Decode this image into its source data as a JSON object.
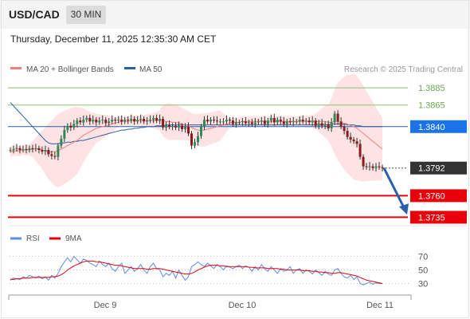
{
  "header": {
    "pair": "USD/CAD",
    "timeframe": "30 MIN",
    "datetime": "Thursday, December 11, 2025 12:35:30 AM CET"
  },
  "legend": {
    "ma20": "MA 20 + Bollinger Bands",
    "ma50": "MA 50",
    "ma20_color": "#f08080",
    "ma50_color": "#2b5fa8",
    "credit": "Research © 2025 Trading Central"
  },
  "chart_data": {
    "type": "candlestick",
    "ylim": [
      1.3728,
      1.3898
    ],
    "x_labels": [
      "Dec 9",
      "Dec 10",
      "Dec 11"
    ],
    "closes": [
      1.3813,
      1.3814,
      1.3815,
      1.3813,
      1.3814,
      1.3813,
      1.3815,
      1.3814,
      1.3815,
      1.3813,
      1.3811,
      1.3813,
      1.3808,
      1.3806,
      1.3805,
      1.3818,
      1.3826,
      1.3836,
      1.3841,
      1.3839,
      1.3843,
      1.3847,
      1.3845,
      1.3848,
      1.385,
      1.3846,
      1.3848,
      1.3845,
      1.3847,
      1.3848,
      1.3844,
      1.3846,
      1.3848,
      1.3847,
      1.3848,
      1.3846,
      1.3848,
      1.3847,
      1.3849,
      1.3846,
      1.3848,
      1.3849,
      1.3846,
      1.3847,
      1.3848,
      1.385,
      1.3847,
      1.3849,
      1.3839,
      1.3842,
      1.384,
      1.3841,
      1.3839,
      1.3841,
      1.3837,
      1.384,
      1.3832,
      1.3818,
      1.3822,
      1.3829,
      1.384,
      1.3848,
      1.3846,
      1.3848,
      1.3847,
      1.3846,
      1.3846,
      1.3846,
      1.3848,
      1.3847,
      1.3843,
      1.3845,
      1.3845,
      1.3846,
      1.3844,
      1.3845,
      1.3843,
      1.3845,
      1.3846,
      1.3847,
      1.3843,
      1.3847,
      1.385,
      1.3845,
      1.3848,
      1.3846,
      1.3843,
      1.3846,
      1.3845,
      1.3846,
      1.3846,
      1.3848,
      1.3846,
      1.3847,
      1.3845,
      1.3847,
      1.3841,
      1.3844,
      1.3841,
      1.3843,
      1.3838,
      1.3845,
      1.3855,
      1.3846,
      1.384,
      1.3835,
      1.3828,
      1.3825,
      1.3823,
      1.382,
      1.3805,
      1.3794,
      1.3793,
      1.3794,
      1.3792,
      1.3794,
      1.3793,
      1.3792
    ],
    "ma20": [
      1.3811,
      1.3812,
      1.3812,
      1.3812,
      1.3813,
      1.3813,
      1.3813,
      1.3814,
      1.3814,
      1.3814,
      1.3813,
      1.3812,
      1.3811,
      1.3811,
      1.3811,
      1.3812,
      1.3814,
      1.3816,
      1.3818,
      1.382,
      1.3822,
      1.3824,
      1.3827,
      1.383,
      1.3832,
      1.3834,
      1.3836,
      1.3838,
      1.3839,
      1.384,
      1.3841,
      1.3842,
      1.3843,
      1.3844,
      1.3845,
      1.3846,
      1.3846,
      1.3846,
      1.3847,
      1.3847,
      1.3847,
      1.3847,
      1.3847,
      1.3847,
      1.3847,
      1.3847,
      1.3847,
      1.3847,
      1.3847,
      1.3846,
      1.3846,
      1.3845,
      1.3845,
      1.3844,
      1.3843,
      1.3842,
      1.3841,
      1.3839,
      1.3837,
      1.3836,
      1.3836,
      1.3836,
      1.3837,
      1.3838,
      1.3839,
      1.384,
      1.3841,
      1.3842,
      1.3843,
      1.3844,
      1.3845,
      1.3845,
      1.3845,
      1.3846,
      1.3846,
      1.3846,
      1.3846,
      1.3846,
      1.3846,
      1.3846,
      1.3846,
      1.3846,
      1.3846,
      1.3846,
      1.3846,
      1.3846,
      1.3846,
      1.3846,
      1.3846,
      1.3846,
      1.3846,
      1.3846,
      1.3846,
      1.3846,
      1.3846,
      1.3846,
      1.3846,
      1.3846,
      1.3846,
      1.3846,
      1.3845,
      1.3845,
      1.3846,
      1.3846,
      1.3845,
      1.3844,
      1.3843,
      1.3841,
      1.384,
      1.3838,
      1.3835,
      1.3832,
      1.3829,
      1.3826,
      1.3823,
      1.382,
      1.3817,
      1.3814
    ],
    "ma50": [
      1.3868,
      1.3864,
      1.386,
      1.3856,
      1.3852,
      1.3848,
      1.3844,
      1.384,
      1.3836,
      1.3832,
      1.3828,
      1.3824,
      1.3821,
      1.382,
      1.382,
      1.382,
      1.3821,
      1.3821,
      1.3822,
      1.3822,
      1.3823,
      1.3823,
      1.3824,
      1.3824,
      1.3825,
      1.3826,
      1.3827,
      1.3828,
      1.3829,
      1.383,
      1.3831,
      1.3832,
      1.3833,
      1.3834,
      1.3835,
      1.3836,
      1.3836,
      1.3837,
      1.3837,
      1.3838,
      1.3838,
      1.3839,
      1.3839,
      1.384,
      1.384,
      1.384,
      1.3841,
      1.3841,
      1.3841,
      1.3842,
      1.3842,
      1.3842,
      1.3842,
      1.3842,
      1.3842,
      1.3842,
      1.3842,
      1.3842,
      1.3842,
      1.3842,
      1.3842,
      1.3842,
      1.3842,
      1.3842,
      1.3842,
      1.3842,
      1.3842,
      1.3842,
      1.3842,
      1.3842,
      1.3842,
      1.3842,
      1.3842,
      1.3842,
      1.3842,
      1.3842,
      1.3842,
      1.3842,
      1.3842,
      1.3842,
      1.3842,
      1.3842,
      1.3842,
      1.3842,
      1.3842,
      1.3842,
      1.3842,
      1.3842,
      1.3842,
      1.3842,
      1.3842,
      1.3842,
      1.3842,
      1.3842,
      1.3842,
      1.3842,
      1.3842,
      1.3842,
      1.3842,
      1.3842,
      1.3842,
      1.3843,
      1.3843,
      1.3843,
      1.3843,
      1.3843,
      1.3842,
      1.3842,
      1.3842,
      1.3841,
      1.3841,
      1.384,
      1.384,
      1.384,
      1.384,
      1.384,
      1.384,
      1.384
    ],
    "levels": [
      {
        "value": 1.3885,
        "label": "1.3885",
        "color": "#8dc26f",
        "kind": "resistance"
      },
      {
        "value": 1.3865,
        "label": "1.3865",
        "color": "#8dc26f",
        "kind": "resistance"
      },
      {
        "value": 1.384,
        "label": "1.3840",
        "color": "#1a73e8",
        "kind": "pivot"
      },
      {
        "value": 1.3792,
        "label": "1.3792",
        "color": "#333333",
        "kind": "last"
      },
      {
        "value": 1.376,
        "label": "1.3760",
        "color": "#e8000a",
        "kind": "support"
      },
      {
        "value": 1.3735,
        "label": "1.3735",
        "color": "#e8000a",
        "kind": "support"
      }
    ],
    "arrow": {
      "from": 1.3792,
      "to": 1.3738,
      "color": "#2b5fa8"
    }
  },
  "rsi": {
    "label_rsi": "RSI",
    "label_9ma": "9MA",
    "rsi_color": "#5b8ee6",
    "ma_color": "#e8000a",
    "levels": [
      "70",
      "50",
      "30"
    ],
    "ylim": [
      20,
      80
    ],
    "values": [
      35,
      38,
      37,
      36,
      40,
      38,
      42,
      40,
      38,
      41,
      37,
      40,
      35,
      42,
      38,
      45,
      55,
      62,
      68,
      62,
      70,
      65,
      60,
      66,
      64,
      60,
      58,
      55,
      63,
      58,
      55,
      60,
      52,
      48,
      55,
      60,
      45,
      50,
      55,
      48,
      52,
      58,
      50,
      45,
      55,
      60,
      52,
      50,
      40,
      45,
      42,
      48,
      38,
      50,
      42,
      35,
      40,
      55,
      58,
      62,
      58,
      55,
      60,
      56,
      52,
      58,
      55,
      50,
      56,
      54,
      52,
      55,
      57,
      52,
      56,
      54,
      48,
      55,
      50,
      58,
      52,
      48,
      55,
      50,
      45,
      52,
      48,
      50,
      55,
      45,
      50,
      52,
      45,
      50,
      48,
      44,
      50,
      46,
      42,
      48,
      44,
      42,
      50,
      52,
      45,
      40,
      38,
      42,
      36,
      40,
      30,
      28,
      30,
      32,
      29,
      31,
      30,
      30
    ],
    "ma_values": [
      36,
      36,
      37,
      37,
      38,
      38,
      38,
      39,
      39,
      39,
      39,
      39,
      39,
      40,
      40,
      41,
      43,
      46,
      50,
      53,
      56,
      58,
      60,
      62,
      63,
      63,
      63,
      62,
      62,
      61,
      60,
      59,
      58,
      57,
      57,
      56,
      55,
      54,
      53,
      52,
      52,
      52,
      52,
      51,
      51,
      52,
      52,
      52,
      51,
      50,
      49,
      48,
      47,
      46,
      45,
      44,
      44,
      45,
      47,
      50,
      52,
      54,
      56,
      57,
      57,
      57,
      56,
      56,
      55,
      55,
      55,
      55,
      55,
      55,
      55,
      54,
      54,
      53,
      53,
      53,
      53,
      52,
      52,
      52,
      52,
      51,
      51,
      50,
      50,
      50,
      50,
      50,
      49,
      49,
      49,
      48,
      48,
      47,
      47,
      46,
      46,
      45,
      45,
      46,
      46,
      45,
      44,
      43,
      42,
      41,
      39,
      37,
      35,
      34,
      33,
      32,
      31,
      30
    ]
  }
}
